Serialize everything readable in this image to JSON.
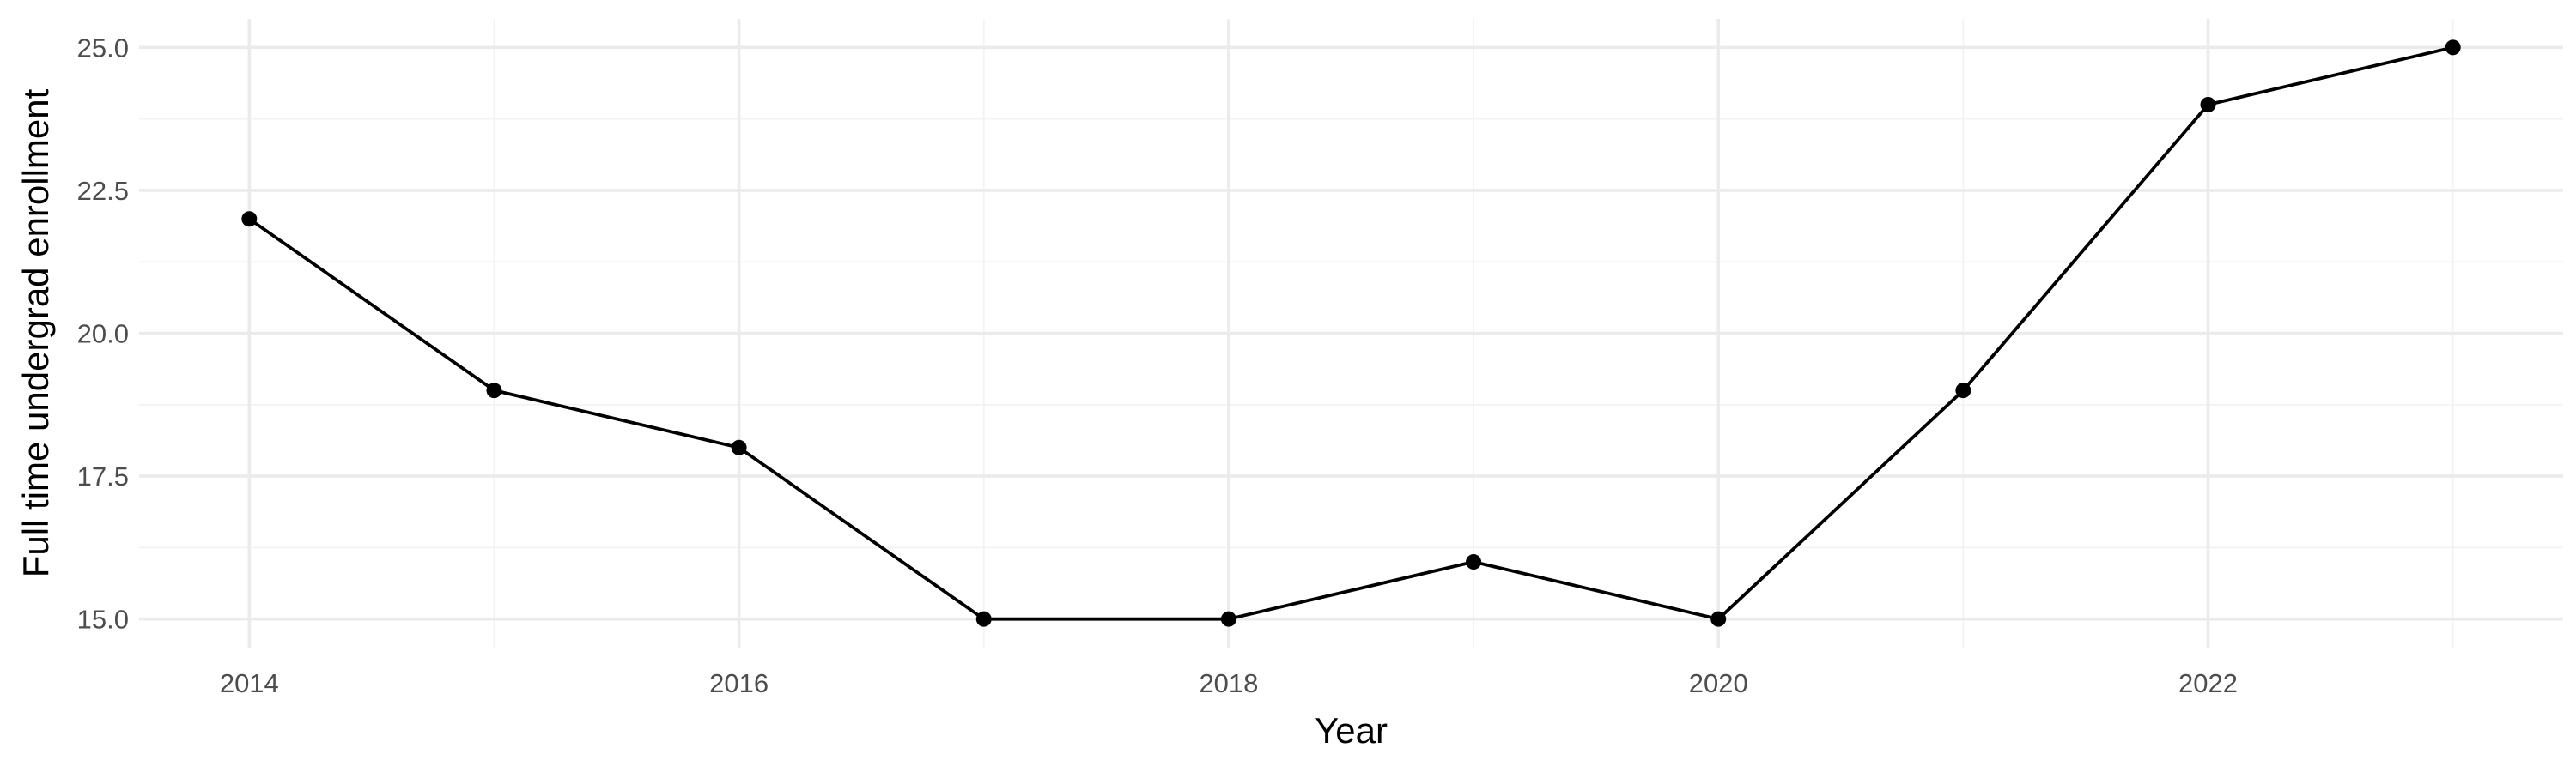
{
  "chart_data": {
    "type": "line",
    "x": [
      2014,
      2015,
      2016,
      2017,
      2018,
      2019,
      2020,
      2021,
      2022,
      2023
    ],
    "series": [
      {
        "values": [
          22,
          19,
          18,
          15,
          15,
          16,
          15,
          19,
          24,
          25
        ],
        "color": "#000000"
      }
    ],
    "xlabel": "Year",
    "ylabel": "Full time undergrad enrollment",
    "xlim": [
      2013.55,
      2023.45
    ],
    "ylim": [
      14.5,
      25.5
    ],
    "x_ticks": [
      2014,
      2016,
      2018,
      2020,
      2022
    ],
    "x_tick_labels": [
      "2014",
      "2016",
      "2018",
      "2020",
      "2022"
    ],
    "y_ticks": [
      15,
      17.5,
      20,
      22.5,
      25
    ],
    "y_tick_labels": [
      "15.0",
      "17.5",
      "20.0",
      "22.5",
      "25.0"
    ],
    "grid": true,
    "markers": true
  }
}
